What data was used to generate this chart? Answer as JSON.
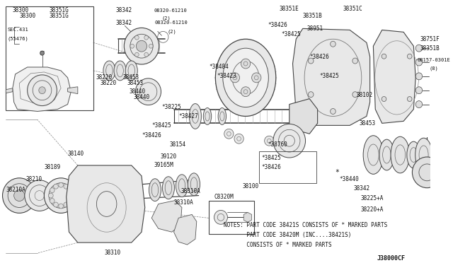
{
  "background_color": "#ffffff",
  "diagram_code": "J38000CF",
  "notes_line1": "NOTES: PART CODE 38421S CONSISTS OF * MARKED PARTS",
  "notes_line2": "       PART CODE 38420M (INC....38421S)",
  "notes_line3": "       CONSISTS OF * MARKED PARTS",
  "fig_width": 6.4,
  "fig_height": 3.72,
  "dpi": 100
}
